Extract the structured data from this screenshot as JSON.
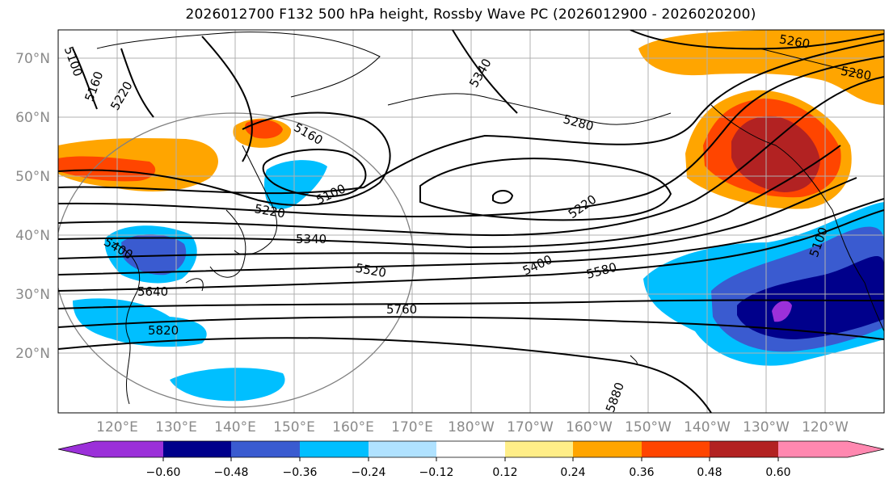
{
  "title": "2026012700 F132 500 hPa height, Rossby Wave PC (2026012900 - 2026020200)",
  "map": {
    "lat_labels": [
      "70°N",
      "60°N",
      "50°N",
      "40°N",
      "30°N",
      "20°N"
    ],
    "lon_labels": [
      "120°E",
      "130°E",
      "140°E",
      "150°E",
      "160°E",
      "170°E",
      "180°W",
      "170°W",
      "160°W",
      "150°W",
      "140°W",
      "130°W",
      "120°W"
    ],
    "contour_labels": [
      "5100",
      "5160",
      "5220",
      "5340",
      "5280",
      "5160",
      "5100",
      "5220",
      "5340",
      "5400",
      "5580",
      "5520",
      "5640",
      "5760",
      "5820",
      "5880",
      "5100",
      "5220",
      "5260",
      "5280",
      "5400"
    ]
  },
  "colorbar": {
    "colors": [
      "#9b30d9",
      "#00008b",
      "#3a5bd0",
      "#00bfff",
      "#b0e2ff",
      "#ffffff",
      "#ffee88",
      "#ffa500",
      "#ff4500",
      "#b22222",
      "#ff88b0"
    ],
    "tick_labels": [
      "−0.60",
      "−0.48",
      "−0.36",
      "−0.24",
      "−0.12",
      "0.12",
      "0.24",
      "0.36",
      "0.48",
      "0.60"
    ]
  }
}
